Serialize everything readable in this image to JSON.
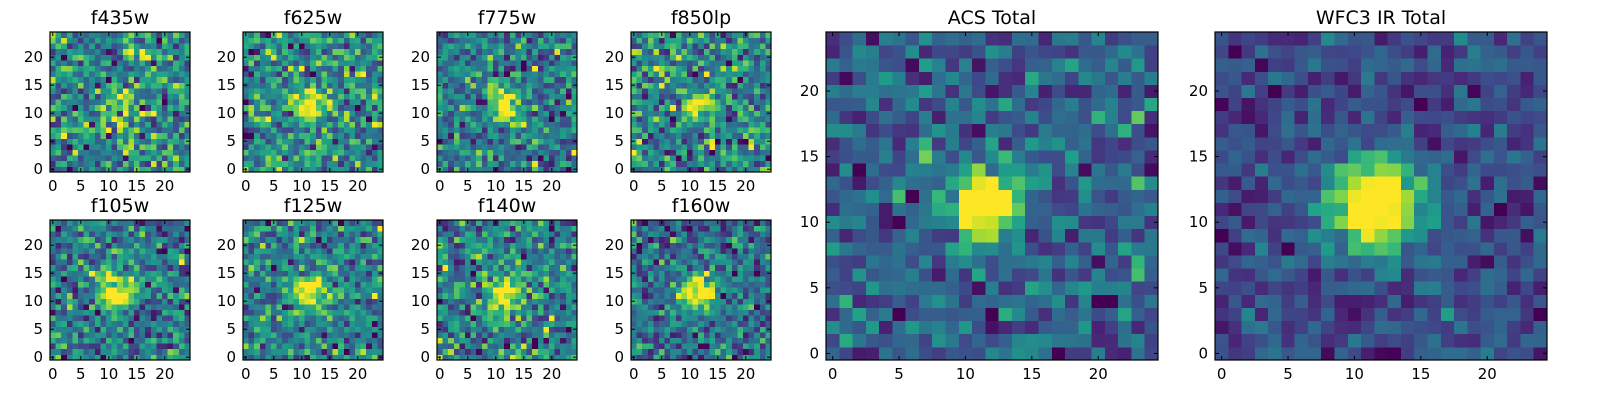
{
  "chart_data": {
    "type": "heatmap",
    "colormap": "viridis",
    "grid": false,
    "panels": [
      {
        "id": "f435w",
        "title": "f435w",
        "xticks": [
          0,
          5,
          10,
          15,
          20
        ],
        "yticks": [
          0,
          5,
          10,
          15,
          20
        ],
        "shape": [
          25,
          25
        ],
        "noise": 0.75,
        "peak": 0.55,
        "radius": 2.0,
        "center": [
          11.5,
          11.5
        ],
        "seed": 11
      },
      {
        "id": "f625w",
        "title": "f625w",
        "xticks": [
          0,
          5,
          10,
          15,
          20
        ],
        "yticks": [
          0,
          5,
          10,
          15,
          20
        ],
        "shape": [
          25,
          25
        ],
        "noise": 0.7,
        "peak": 0.9,
        "radius": 1.8,
        "center": [
          11.5,
          11.5
        ],
        "seed": 23
      },
      {
        "id": "f775w",
        "title": "f775w",
        "xticks": [
          0,
          5,
          10,
          15,
          20
        ],
        "yticks": [
          0,
          5,
          10,
          15,
          20
        ],
        "shape": [
          25,
          25
        ],
        "noise": 0.6,
        "peak": 0.95,
        "radius": 2.0,
        "center": [
          11.5,
          11.5
        ],
        "seed": 37
      },
      {
        "id": "f850lp",
        "title": "f850lp",
        "xticks": [
          0,
          5,
          10,
          15,
          20
        ],
        "yticks": [
          0,
          5,
          10,
          15,
          20
        ],
        "shape": [
          25,
          25
        ],
        "noise": 0.7,
        "peak": 0.9,
        "radius": 1.8,
        "center": [
          11.5,
          11.5
        ],
        "seed": 41
      },
      {
        "id": "f105w",
        "title": "f105w",
        "xticks": [
          0,
          5,
          10,
          15,
          20
        ],
        "yticks": [
          0,
          5,
          10,
          15,
          20
        ],
        "shape": [
          25,
          25
        ],
        "noise": 0.5,
        "peak": 1.0,
        "radius": 2.3,
        "center": [
          11.5,
          11.5
        ],
        "seed": 53
      },
      {
        "id": "f125w",
        "title": "f125w",
        "xticks": [
          0,
          5,
          10,
          15,
          20
        ],
        "yticks": [
          0,
          5,
          10,
          15,
          20
        ],
        "shape": [
          25,
          25
        ],
        "noise": 0.5,
        "peak": 0.85,
        "radius": 2.3,
        "center": [
          11.5,
          11.5
        ],
        "seed": 67
      },
      {
        "id": "f140w",
        "title": "f140w",
        "xticks": [
          0,
          5,
          10,
          15,
          20
        ],
        "yticks": [
          0,
          5,
          10,
          15,
          20
        ],
        "shape": [
          25,
          25
        ],
        "noise": 0.5,
        "peak": 0.9,
        "radius": 2.3,
        "center": [
          11.5,
          11.5
        ],
        "seed": 79
      },
      {
        "id": "f160w",
        "title": "f160w",
        "xticks": [
          0,
          5,
          10,
          15,
          20
        ],
        "yticks": [
          0,
          5,
          10,
          15,
          20
        ],
        "shape": [
          25,
          25
        ],
        "noise": 0.5,
        "peak": 1.0,
        "radius": 2.3,
        "center": [
          11.5,
          11.5
        ],
        "seed": 83
      },
      {
        "id": "acs-total",
        "title": "ACS Total",
        "xticks": [
          0,
          5,
          10,
          15,
          20
        ],
        "yticks": [
          0,
          5,
          10,
          15,
          20
        ],
        "shape": [
          25,
          25
        ],
        "noise": 0.45,
        "peak": 1.6,
        "radius": 1.9,
        "center": [
          11.5,
          11.5
        ],
        "seed": 97
      },
      {
        "id": "wfc3-ir-total",
        "title": "WFC3 IR Total",
        "xticks": [
          0,
          5,
          10,
          15,
          20
        ],
        "yticks": [
          0,
          5,
          10,
          15,
          20
        ],
        "shape": [
          25,
          25
        ],
        "noise": 0.35,
        "peak": 1.8,
        "radius": 2.4,
        "center": [
          11.5,
          11.5
        ],
        "seed": 101
      }
    ]
  }
}
